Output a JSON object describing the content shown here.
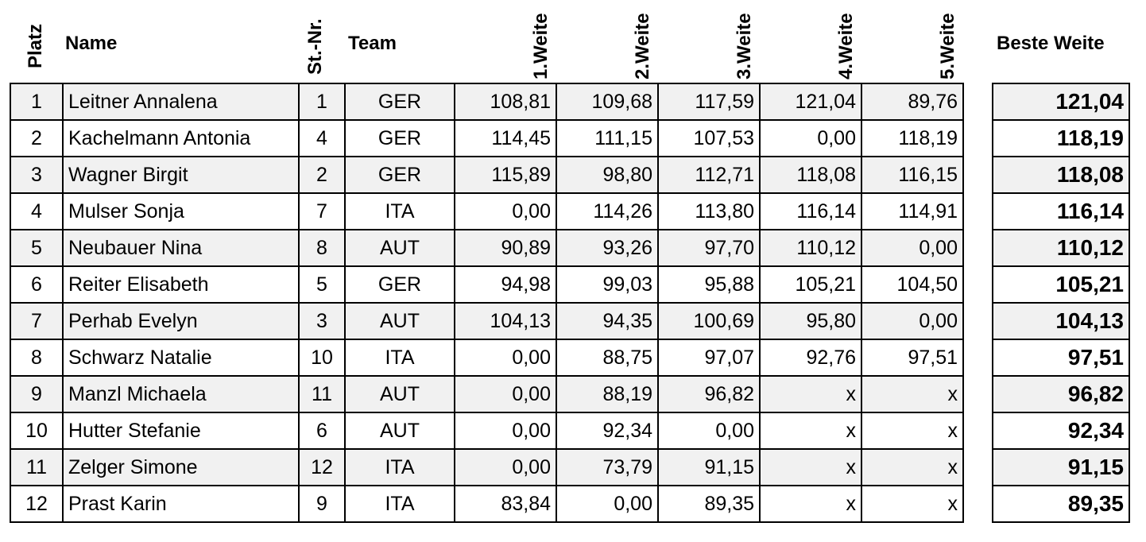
{
  "headers": {
    "platz": "Platz",
    "name": "Name",
    "stnr": "St.-Nr.",
    "team": "Team",
    "w1": "1.Weite",
    "w2": "2.Weite",
    "w3": "3.Weite",
    "w4": "4.Weite",
    "w5": "5.Weite",
    "best": "Beste Weite"
  },
  "rows": [
    {
      "platz": "1",
      "name": "Leitner Annalena",
      "stnr": "1",
      "team": "GER",
      "w1": "108,81",
      "w2": "109,68",
      "w3": "117,59",
      "w4": "121,04",
      "w5": "89,76",
      "best": "121,04"
    },
    {
      "platz": "2",
      "name": "Kachelmann Antonia",
      "stnr": "4",
      "team": "GER",
      "w1": "114,45",
      "w2": "111,15",
      "w3": "107,53",
      "w4": "0,00",
      "w5": "118,19",
      "best": "118,19"
    },
    {
      "platz": "3",
      "name": "Wagner Birgit",
      "stnr": "2",
      "team": "GER",
      "w1": "115,89",
      "w2": "98,80",
      "w3": "112,71",
      "w4": "118,08",
      "w5": "116,15",
      "best": "118,08"
    },
    {
      "platz": "4",
      "name": "Mulser Sonja",
      "stnr": "7",
      "team": "ITA",
      "w1": "0,00",
      "w2": "114,26",
      "w3": "113,80",
      "w4": "116,14",
      "w5": "114,91",
      "best": "116,14"
    },
    {
      "platz": "5",
      "name": "Neubauer Nina",
      "stnr": "8",
      "team": "AUT",
      "w1": "90,89",
      "w2": "93,26",
      "w3": "97,70",
      "w4": "110,12",
      "w5": "0,00",
      "best": "110,12"
    },
    {
      "platz": "6",
      "name": "Reiter Elisabeth",
      "stnr": "5",
      "team": "GER",
      "w1": "94,98",
      "w2": "99,03",
      "w3": "95,88",
      "w4": "105,21",
      "w5": "104,50",
      "best": "105,21"
    },
    {
      "platz": "7",
      "name": "Perhab Evelyn",
      "stnr": "3",
      "team": "AUT",
      "w1": "104,13",
      "w2": "94,35",
      "w3": "100,69",
      "w4": "95,80",
      "w5": "0,00",
      "best": "104,13"
    },
    {
      "platz": "8",
      "name": "Schwarz Natalie",
      "stnr": "10",
      "team": "ITA",
      "w1": "0,00",
      "w2": "88,75",
      "w3": "97,07",
      "w4": "92,76",
      "w5": "97,51",
      "best": "97,51"
    },
    {
      "platz": "9",
      "name": "Manzl Michaela",
      "stnr": "11",
      "team": "AUT",
      "w1": "0,00",
      "w2": "88,19",
      "w3": "96,82",
      "w4": "x",
      "w5": "x",
      "best": "96,82"
    },
    {
      "platz": "10",
      "name": "Hutter Stefanie",
      "stnr": "6",
      "team": "AUT",
      "w1": "0,00",
      "w2": "92,34",
      "w3": "0,00",
      "w4": "x",
      "w5": "x",
      "best": "92,34"
    },
    {
      "platz": "11",
      "name": "Zelger Simone",
      "stnr": "12",
      "team": "ITA",
      "w1": "0,00",
      "w2": "73,79",
      "w3": "91,15",
      "w4": "x",
      "w5": "x",
      "best": "91,15"
    },
    {
      "platz": "12",
      "name": "Prast Karin",
      "stnr": "9",
      "team": "ITA",
      "w1": "83,84",
      "w2": "0,00",
      "w3": "89,35",
      "w4": "x",
      "w5": "x",
      "best": "89,35"
    }
  ],
  "colors": {
    "alt_row": "#f1f1f1",
    "border": "#000000"
  }
}
